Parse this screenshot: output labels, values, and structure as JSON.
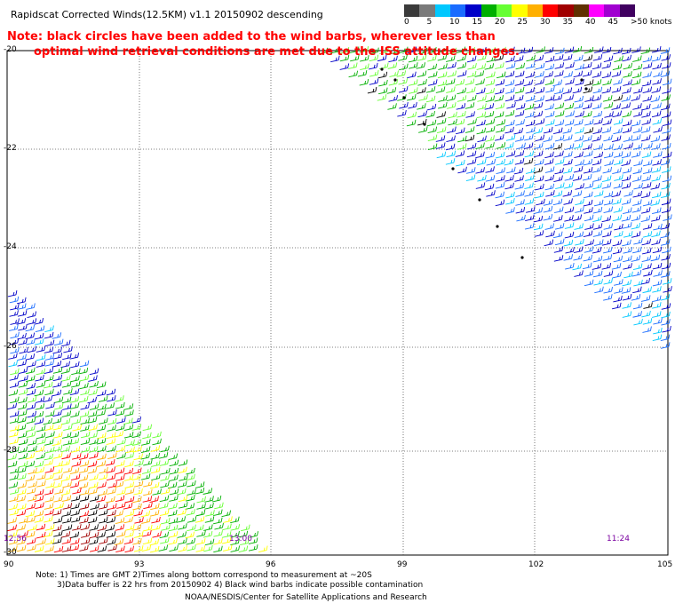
{
  "header": {
    "title": "Rapidscat Corrected Winds(12.5KM) v1.1 20150902 descending",
    "note_line1": "Note: black circles have been added to the wind barbs, wherever less than",
    "note_line2": "optimal wind retrieval conditions are met due to the ISS attitude changes."
  },
  "legend": {
    "colors": [
      "#3a3a3a",
      "#7a7a7a",
      "#00c8ff",
      "#1a6cff",
      "#0000c8",
      "#00b000",
      "#66ff33",
      "#ffff00",
      "#ffb000",
      "#ff0000",
      "#a00000",
      "#603000",
      "#ff00ff",
      "#a000d0",
      "#400060"
    ],
    "labels": [
      "0",
      "5",
      "10",
      "15",
      "20",
      "25",
      "30",
      "35",
      "40",
      "45",
      ">50 knots"
    ]
  },
  "axes": {
    "lat_labels": [
      "-20",
      "-22",
      "-24",
      "-26",
      "-28",
      "-30"
    ],
    "lon_labels": [
      "90",
      "93",
      "96",
      "99",
      "102",
      "105"
    ]
  },
  "times": [
    "12:56",
    "13:00",
    "11:24"
  ],
  "footer": {
    "line1": "Note: 1) Times are GMT 2)Times along bottom correspond to measurement at ~20S",
    "line2": "3)Data buffer is 22 hrs from 20150902 4) Black wind barbs indicate possible contamination",
    "credit": "NOAA/NESDIS/Center for Satellite Applications and Research"
  }
}
